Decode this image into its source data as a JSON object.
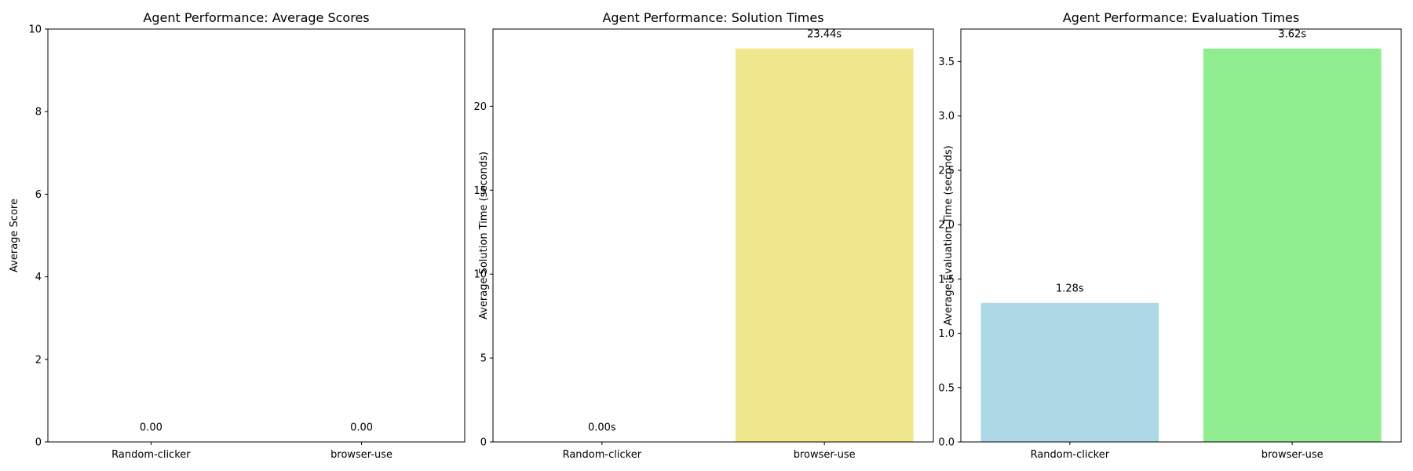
{
  "chart_data": [
    {
      "type": "bar",
      "title": "Agent Performance: Average Scores",
      "xlabel": "",
      "ylabel": "Average Score",
      "categories": [
        "Random-clicker",
        "browser-use"
      ],
      "values": [
        0.0,
        0.0
      ],
      "value_labels": [
        "0.00",
        "0.00"
      ],
      "colors": [
        "#add8e6",
        "#90ee90"
      ],
      "ylim": [
        0,
        10
      ],
      "yticks": [
        0,
        2,
        4,
        6,
        8,
        10
      ],
      "ytick_labels": [
        "0",
        "2",
        "4",
        "6",
        "8",
        "10"
      ],
      "grid": false
    },
    {
      "type": "bar",
      "title": "Agent Performance: Solution Times",
      "xlabel": "",
      "ylabel": "Average Solution Time (seconds)",
      "categories": [
        "Random-clicker",
        "browser-use"
      ],
      "values": [
        0.0,
        23.44
      ],
      "value_labels": [
        "0.00s",
        "23.44s"
      ],
      "colors": [
        "#add8e6",
        "#f0e68c"
      ],
      "ylim": [
        0,
        24.6
      ],
      "yticks": [
        0,
        5,
        10,
        15,
        20
      ],
      "ytick_labels": [
        "0",
        "5",
        "10",
        "15",
        "20"
      ],
      "grid": false
    },
    {
      "type": "bar",
      "title": "Agent Performance: Evaluation Times",
      "xlabel": "",
      "ylabel": "Average Evaluation Time (seconds)",
      "categories": [
        "Random-clicker",
        "browser-use"
      ],
      "values": [
        1.28,
        3.62
      ],
      "value_labels": [
        "1.28s",
        "3.62s"
      ],
      "colors": [
        "#add8e6",
        "#90ee90"
      ],
      "ylim": [
        0,
        3.8
      ],
      "yticks": [
        0.0,
        0.5,
        1.0,
        1.5,
        2.0,
        2.5,
        3.0,
        3.5
      ],
      "ytick_labels": [
        "0.0",
        "0.5",
        "1.0",
        "1.5",
        "2.0",
        "2.5",
        "3.0",
        "3.5"
      ],
      "grid": false
    }
  ]
}
